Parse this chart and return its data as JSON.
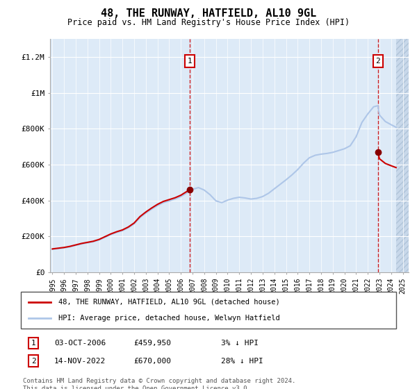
{
  "title": "48, THE RUNWAY, HATFIELD, AL10 9GL",
  "subtitle": "Price paid vs. HM Land Registry's House Price Index (HPI)",
  "legend_label_red": "48, THE RUNWAY, HATFIELD, AL10 9GL (detached house)",
  "legend_label_blue": "HPI: Average price, detached house, Welwyn Hatfield",
  "annotation1_date": "03-OCT-2006",
  "annotation1_price": 459950,
  "annotation1_pct": "3% ↓ HPI",
  "annotation2_date": "14-NOV-2022",
  "annotation2_price": 670000,
  "annotation2_pct": "28% ↓ HPI",
  "footer": "Contains HM Land Registry data © Crown copyright and database right 2024.\nThis data is licensed under the Open Government Licence v3.0.",
  "ylim": [
    0,
    1300000
  ],
  "yticks": [
    0,
    200000,
    400000,
    600000,
    800000,
    1000000,
    1200000
  ],
  "ytick_labels": [
    "£0",
    "£200K",
    "£400K",
    "£600K",
    "£800K",
    "£1M",
    "£1.2M"
  ],
  "hpi_color": "#aec6e8",
  "price_color": "#cc0000",
  "bg_color": "#ddeaf7",
  "hatch_bg_color": "#c8d8ea",
  "grid_color": "#ffffff",
  "vline_color": "#cc0000",
  "marker_color": "#880000",
  "point1_x": 2006.75,
  "point1_y": 459950,
  "point2_x": 2022.87,
  "point2_y": 670000,
  "xlim_left": 1994.8,
  "xlim_right": 2025.5,
  "hatch_start": 2024.42
}
